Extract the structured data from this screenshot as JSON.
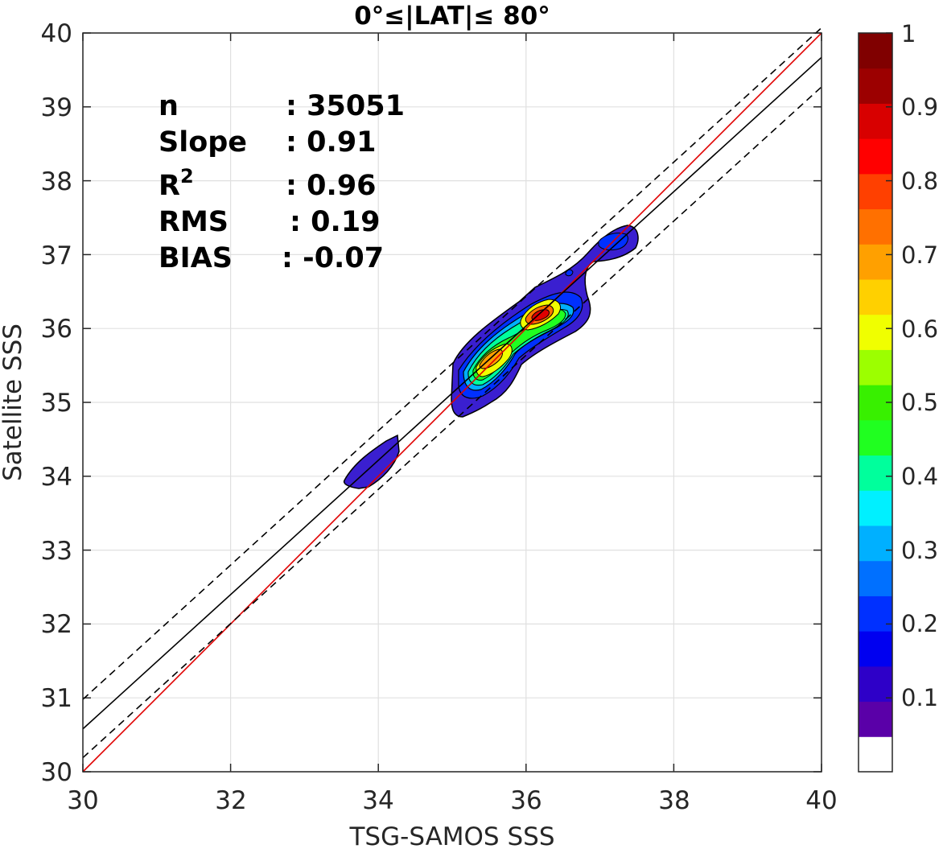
{
  "chart_data": {
    "type": "contour",
    "title": "0°≤|LAT|≤ 80°",
    "xlabel": "TSG-SAMOS SSS",
    "ylabel": "Satellite SSS",
    "xlim": [
      30,
      40
    ],
    "ylim": [
      30,
      40
    ],
    "xticks": [
      "30",
      "32",
      "34",
      "36",
      "38",
      "40"
    ],
    "yticks": [
      "30",
      "31",
      "32",
      "33",
      "34",
      "35",
      "36",
      "37",
      "38",
      "39",
      "40"
    ],
    "grid": true,
    "stats": [
      {
        "label": "n",
        "value": ": 35051"
      },
      {
        "label": "Slope",
        "value": ": 0.91"
      },
      {
        "label": "R",
        "sup": "2",
        "value": ": 0.96"
      },
      {
        "label": "RMS",
        "value": ": 0.19"
      },
      {
        "label": "BIAS",
        "value": ": -0.07"
      }
    ],
    "lines": [
      {
        "name": "one-to-one",
        "color": "#e00000",
        "style": "solid",
        "points": [
          [
            30,
            30
          ],
          [
            40,
            40
          ]
        ]
      },
      {
        "name": "regression",
        "color": "#000000",
        "style": "solid",
        "points": [
          [
            30,
            30.58
          ],
          [
            40,
            39.67
          ]
        ]
      },
      {
        "name": "regression-plus-2rms",
        "color": "#000000",
        "style": "dashed",
        "points": [
          [
            30,
            30.98
          ],
          [
            40,
            40.07
          ]
        ]
      },
      {
        "name": "regression-minus-2rms",
        "color": "#000000",
        "style": "dashed",
        "points": [
          [
            30,
            30.19
          ],
          [
            40,
            39.27
          ]
        ]
      }
    ],
    "density_clusters": [
      {
        "x": [
          33.6,
          34.3
        ],
        "y": [
          33.8,
          34.5
        ],
        "peak": 0.1
      },
      {
        "x": [
          35.0,
          36.0
        ],
        "y": [
          34.9,
          36.0
        ],
        "peak": 0.75,
        "peak_at": [
          35.55,
          35.65
        ]
      },
      {
        "x": [
          35.7,
          36.8
        ],
        "y": [
          35.9,
          36.6
        ],
        "peak": 0.95,
        "peak_at": [
          36.2,
          36.2
        ]
      },
      {
        "x": [
          36.8,
          37.5
        ],
        "y": [
          36.9,
          37.4
        ],
        "peak": 0.2,
        "peak_at": [
          37.2,
          37.2
        ]
      }
    ],
    "colorbar": {
      "range": [
        0,
        1
      ],
      "tick_labels": [
        "0.1",
        "0.2",
        "0.3",
        "0.4",
        "0.5",
        "0.6",
        "0.7",
        "0.8",
        "0.9",
        "1"
      ],
      "colors": [
        "#ffffff",
        "#5a00a8",
        "#2e00c8",
        "#0000f0",
        "#0030ff",
        "#0070ff",
        "#00b0ff",
        "#00f0ff",
        "#00ff9c",
        "#20ff20",
        "#38f000",
        "#9cff00",
        "#f0ff00",
        "#ffd000",
        "#ffa000",
        "#ff7000",
        "#ff4000",
        "#ff0000",
        "#d80000",
        "#9c0000",
        "#800000"
      ]
    }
  }
}
